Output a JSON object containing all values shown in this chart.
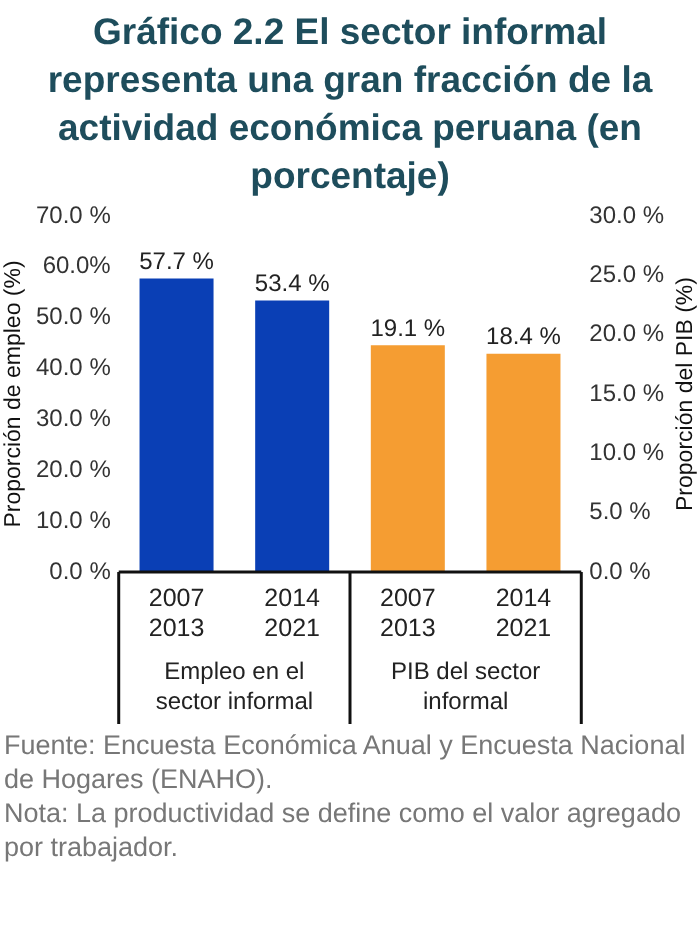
{
  "chart_data": {
    "type": "bar",
    "title": "Gráfico 2.2 El sector informal representa una gran fracción de la actividad económica peruana (en porcentaje)",
    "ylabel": "Proporción de empleo (%)",
    "y2label": "Proporción del PIB (%)",
    "categories": [
      "2007\n2013",
      "2014\n2021",
      "2007\n2013",
      "2014\n2021"
    ],
    "series": [
      {
        "color": "#0a3fb5",
        "values": [
          57.7,
          53.4,
          null,
          null
        ],
        "value_labels": [
          "57.7 %",
          "53.4 %",
          null,
          null
        ]
      },
      {
        "color": "#f59d32",
        "axis": "y2",
        "values": [
          null,
          null,
          19.1,
          18.4
        ],
        "value_labels": [
          null,
          null,
          "19.1 %",
          "18.4 %"
        ]
      }
    ],
    "ylim": [
      0,
      70
    ],
    "yticks": [
      {
        "value": 0,
        "label": "0.0 %"
      },
      {
        "value": 10,
        "label": "10.0 %"
      },
      {
        "value": 20,
        "label": "20.0 %"
      },
      {
        "value": 30,
        "label": "30.0 %"
      },
      {
        "value": 40,
        "label": "40.0 %"
      },
      {
        "value": 50,
        "label": "50.0 %"
      },
      {
        "value": 60,
        "label": "60.0%"
      },
      {
        "value": 70,
        "label": "70.0 %"
      }
    ],
    "y2lim": [
      0,
      30
    ],
    "y2ticks": [
      {
        "value": 0,
        "label": "0.0 %"
      },
      {
        "value": 5,
        "label": "5.0 %"
      },
      {
        "value": 10,
        "label": "10.0 %"
      },
      {
        "value": 15,
        "label": "15.0 %"
      },
      {
        "value": 20,
        "label": "20.0 %"
      },
      {
        "value": 25,
        "label": "25.0 %"
      },
      {
        "value": 30,
        "label": "30.0 %"
      }
    ],
    "grid": false,
    "legend": false,
    "annotations": [
      "Empleo en el sector informal",
      "PIB del sector informal",
      "Fuente: Encuesta Económica Anual y Encuesta Nacional de Hogares (ENAHO).",
      "Nota: La productividad se define como el valor agregado por trabajador."
    ]
  }
}
